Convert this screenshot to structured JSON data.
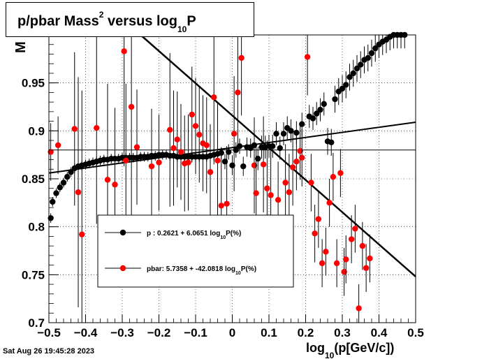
{
  "title": {
    "main": "p/pbar Mass",
    "sup": "2",
    "mid": " versus log",
    "sub": "10",
    "end": "P"
  },
  "timestamp": "Sat Aug 26 19:45:28 2023",
  "colors": {
    "proton": "#000000",
    "pbar": "#ff0000",
    "grid": "#000000"
  },
  "chart_data": {
    "type": "scatter",
    "xlabel": {
      "pre": "log",
      "sub": "10",
      "post": "(p[GeV/c])"
    },
    "ylabel": "M",
    "xlim": [
      -0.5,
      0.5
    ],
    "ylim": [
      0.7,
      1.0
    ],
    "x_ticks": [
      "−0.5",
      "−0.4",
      "−0.3",
      "−0.2",
      "−0.1",
      "0",
      "0.1",
      "0.2",
      "0.3",
      "0.4",
      "0.5"
    ],
    "x_tick_values": [
      -0.5,
      -0.4,
      -0.3,
      -0.2,
      -0.1,
      0,
      0.1,
      0.2,
      0.3,
      0.4,
      0.5
    ],
    "y_ticks": [
      "0.7",
      "0.75",
      "0.8",
      "0.85",
      "0.9",
      "0.95"
    ],
    "y_tick_values": [
      0.7,
      0.75,
      0.8,
      0.85,
      0.9,
      0.95
    ],
    "grid": true,
    "reference_line_y": 0.88,
    "legend": {
      "position": "middle-left",
      "entries": [
        {
          "label_pre": "p  : 0.2621 + 6.0651 log",
          "label_sub": "10",
          "label_post": "P(%)",
          "series": "proton"
        },
        {
          "label_pre": "pbar: 5.7358 + -42.0818 log",
          "label_sub": "10",
          "label_post": "P(%)",
          "series": "pbar"
        }
      ]
    },
    "series": [
      {
        "id": "proton",
        "fit": {
          "x": [
            -0.5,
            0.5
          ],
          "y": [
            0.856,
            0.909
          ]
        },
        "points": [
          [
            -0.495,
            0.809,
            0.005
          ],
          [
            -0.49,
            0.826,
            0.005
          ],
          [
            -0.48,
            0.835,
            0.005
          ],
          [
            -0.47,
            0.841,
            0.005
          ],
          [
            -0.46,
            0.846,
            0.005
          ],
          [
            -0.45,
            0.852,
            0.005
          ],
          [
            -0.44,
            0.857,
            0.005
          ],
          [
            -0.43,
            0.861,
            0.005
          ],
          [
            -0.42,
            0.863,
            0.005
          ],
          [
            -0.41,
            0.864,
            0.005
          ],
          [
            -0.4,
            0.865,
            0.005
          ],
          [
            -0.39,
            0.866,
            0.005
          ],
          [
            -0.38,
            0.867,
            0.005
          ],
          [
            -0.37,
            0.868,
            0.005
          ],
          [
            -0.36,
            0.869,
            0.005
          ],
          [
            -0.35,
            0.87,
            0.005
          ],
          [
            -0.34,
            0.87,
            0.005
          ],
          [
            -0.33,
            0.871,
            0.005
          ],
          [
            -0.32,
            0.871,
            0.005
          ],
          [
            -0.31,
            0.871,
            0.005
          ],
          [
            -0.3,
            0.872,
            0.005
          ],
          [
            -0.29,
            0.872,
            0.005
          ],
          [
            -0.28,
            0.872,
            0.005
          ],
          [
            -0.27,
            0.872,
            0.005
          ],
          [
            -0.26,
            0.872,
            0.005
          ],
          [
            -0.25,
            0.873,
            0.005
          ],
          [
            -0.24,
            0.873,
            0.005
          ],
          [
            -0.23,
            0.873,
            0.005
          ],
          [
            -0.22,
            0.874,
            0.005
          ],
          [
            -0.21,
            0.874,
            0.005
          ],
          [
            -0.2,
            0.875,
            0.005
          ],
          [
            -0.19,
            0.875,
            0.005
          ],
          [
            -0.18,
            0.875,
            0.005
          ],
          [
            -0.17,
            0.874,
            0.005
          ],
          [
            -0.16,
            0.874,
            0.005
          ],
          [
            -0.15,
            0.873,
            0.005
          ],
          [
            -0.14,
            0.873,
            0.005
          ],
          [
            -0.13,
            0.873,
            0.005
          ],
          [
            -0.12,
            0.873,
            0.005
          ],
          [
            -0.11,
            0.873,
            0.005
          ],
          [
            -0.1,
            0.873,
            0.005
          ],
          [
            -0.09,
            0.873,
            0.005
          ],
          [
            -0.08,
            0.873,
            0.005
          ],
          [
            -0.07,
            0.873,
            0.005
          ],
          [
            -0.06,
            0.874,
            0.006
          ],
          [
            -0.05,
            0.875,
            0.006
          ],
          [
            -0.04,
            0.876,
            0.006
          ],
          [
            -0.03,
            0.877,
            0.006
          ],
          [
            -0.02,
            0.868,
            0.008
          ],
          [
            -0.01,
            0.878,
            0.008
          ],
          [
            0.0,
            0.864,
            0.01
          ],
          [
            0.01,
            0.88,
            0.008
          ],
          [
            0.02,
            0.884,
            0.008
          ],
          [
            0.03,
            0.863,
            0.01
          ],
          [
            0.04,
            0.883,
            0.01
          ],
          [
            0.05,
            0.882,
            0.01
          ],
          [
            0.06,
            0.885,
            0.01
          ],
          [
            0.07,
            0.871,
            0.012
          ],
          [
            0.08,
            0.883,
            0.012
          ],
          [
            0.09,
            0.883,
            0.012
          ],
          [
            0.1,
            0.884,
            0.012
          ],
          [
            0.11,
            0.884,
            0.012
          ],
          [
            0.12,
            0.897,
            0.012
          ],
          [
            0.13,
            0.882,
            0.012
          ],
          [
            0.14,
            0.897,
            0.012
          ],
          [
            0.15,
            0.903,
            0.012
          ],
          [
            0.16,
            0.9,
            0.012
          ],
          [
            0.175,
            0.898,
            0.012
          ],
          [
            0.19,
            0.907,
            0.012
          ],
          [
            0.21,
            0.915,
            0.012
          ],
          [
            0.22,
            0.913,
            0.012
          ],
          [
            0.23,
            0.918,
            0.012
          ],
          [
            0.24,
            0.922,
            0.012
          ],
          [
            0.25,
            0.928,
            0.012
          ],
          [
            0.26,
            0.889,
            0.014
          ],
          [
            0.27,
            0.888,
            0.014
          ],
          [
            0.28,
            0.933,
            0.014
          ],
          [
            0.29,
            0.941,
            0.014
          ],
          [
            0.3,
            0.944,
            0.014
          ],
          [
            0.31,
            0.948,
            0.014
          ],
          [
            0.32,
            0.956,
            0.014
          ],
          [
            0.33,
            0.96,
            0.014
          ],
          [
            0.34,
            0.965,
            0.014
          ],
          [
            0.35,
            0.969,
            0.014
          ],
          [
            0.36,
            0.974,
            0.014
          ],
          [
            0.37,
            0.976,
            0.014
          ],
          [
            0.38,
            0.981,
            0.014
          ],
          [
            0.39,
            0.986,
            0.014
          ],
          [
            0.4,
            0.99,
            0.014
          ],
          [
            0.41,
            0.993,
            0.014
          ],
          [
            0.42,
            0.995,
            0.014
          ],
          [
            0.43,
            0.998,
            0.014
          ],
          [
            0.44,
            1.0,
            0.014
          ],
          [
            0.45,
            1.0,
            0.014
          ],
          [
            0.46,
            1.0,
            0.014
          ],
          [
            0.47,
            1.0,
            0.014
          ]
        ]
      },
      {
        "id": "pbar",
        "fit": {
          "x": [
            -0.25,
            0.5
          ],
          "y": [
            1.0,
            0.748
          ]
        },
        "points": [
          [
            -0.495,
            0.878,
            0.03
          ],
          [
            -0.475,
            0.885,
            0.03
          ],
          [
            -0.43,
            0.902,
            0.08
          ],
          [
            -0.42,
            0.836,
            0.12
          ],
          [
            -0.41,
            0.792,
            0.15
          ],
          [
            -0.37,
            0.903,
            0.1
          ],
          [
            -0.34,
            0.849,
            0.1
          ],
          [
            -0.32,
            0.844,
            0.08
          ],
          [
            -0.295,
            0.983,
            0.12
          ],
          [
            -0.29,
            0.869,
            0.08
          ],
          [
            -0.275,
            0.925,
            0.12
          ],
          [
            -0.26,
            0.883,
            0.06
          ],
          [
            -0.22,
            0.863,
            0.06
          ],
          [
            -0.2,
            0.867,
            0.05
          ],
          [
            -0.17,
            0.901,
            0.08
          ],
          [
            -0.16,
            0.882,
            0.06
          ],
          [
            -0.15,
            0.891,
            0.05
          ],
          [
            -0.14,
            0.878,
            0.05
          ],
          [
            -0.13,
            0.866,
            0.05
          ],
          [
            -0.12,
            0.867,
            0.05
          ],
          [
            -0.11,
            0.917,
            0.05
          ],
          [
            -0.1,
            0.905,
            0.05
          ],
          [
            -0.09,
            0.896,
            0.05
          ],
          [
            -0.08,
            0.887,
            0.05
          ],
          [
            -0.07,
            0.885,
            0.05
          ],
          [
            -0.06,
            0.857,
            0.05
          ],
          [
            -0.05,
            0.935,
            0.07
          ],
          [
            -0.04,
            0.869,
            0.06
          ],
          [
            -0.03,
            0.822,
            0.06
          ],
          [
            -0.015,
            0.824,
            0.06
          ],
          [
            0.005,
            0.897,
            0.06
          ],
          [
            0.015,
            0.94,
            0.06
          ],
          [
            0.025,
            0.976,
            0.06
          ],
          [
            0.06,
            0.864,
            0.05
          ],
          [
            0.065,
            0.835,
            0.05
          ],
          [
            0.085,
            0.865,
            0.05
          ],
          [
            0.095,
            0.84,
            0.05
          ],
          [
            0.105,
            0.833,
            0.05
          ],
          [
            0.125,
            0.828,
            0.04
          ],
          [
            0.145,
            0.846,
            0.04
          ],
          [
            0.155,
            0.836,
            0.04
          ],
          [
            0.165,
            0.862,
            0.04
          ],
          [
            0.175,
            0.868,
            0.03
          ],
          [
            0.185,
            0.879,
            0.03
          ],
          [
            0.19,
            0.872,
            0.03
          ],
          [
            0.205,
            0.977,
            0.04
          ],
          [
            0.215,
            0.846,
            0.03
          ],
          [
            0.225,
            0.793,
            0.03
          ],
          [
            0.235,
            0.808,
            0.03
          ],
          [
            0.245,
            0.762,
            0.025
          ],
          [
            0.255,
            0.774,
            0.025
          ],
          [
            0.265,
            0.825,
            0.025
          ],
          [
            0.275,
            0.852,
            0.025
          ],
          [
            0.285,
            0.762,
            0.025
          ],
          [
            0.295,
            0.856,
            0.025
          ],
          [
            0.305,
            0.753,
            0.025
          ],
          [
            0.31,
            0.766,
            0.025
          ],
          [
            0.325,
            0.787,
            0.025
          ],
          [
            0.335,
            0.798,
            0.025
          ],
          [
            0.345,
            0.715,
            0.025
          ],
          [
            0.355,
            0.78,
            0.025
          ],
          [
            0.365,
            0.757,
            0.025
          ],
          [
            0.375,
            0.767,
            0.025
          ]
        ]
      }
    ]
  }
}
